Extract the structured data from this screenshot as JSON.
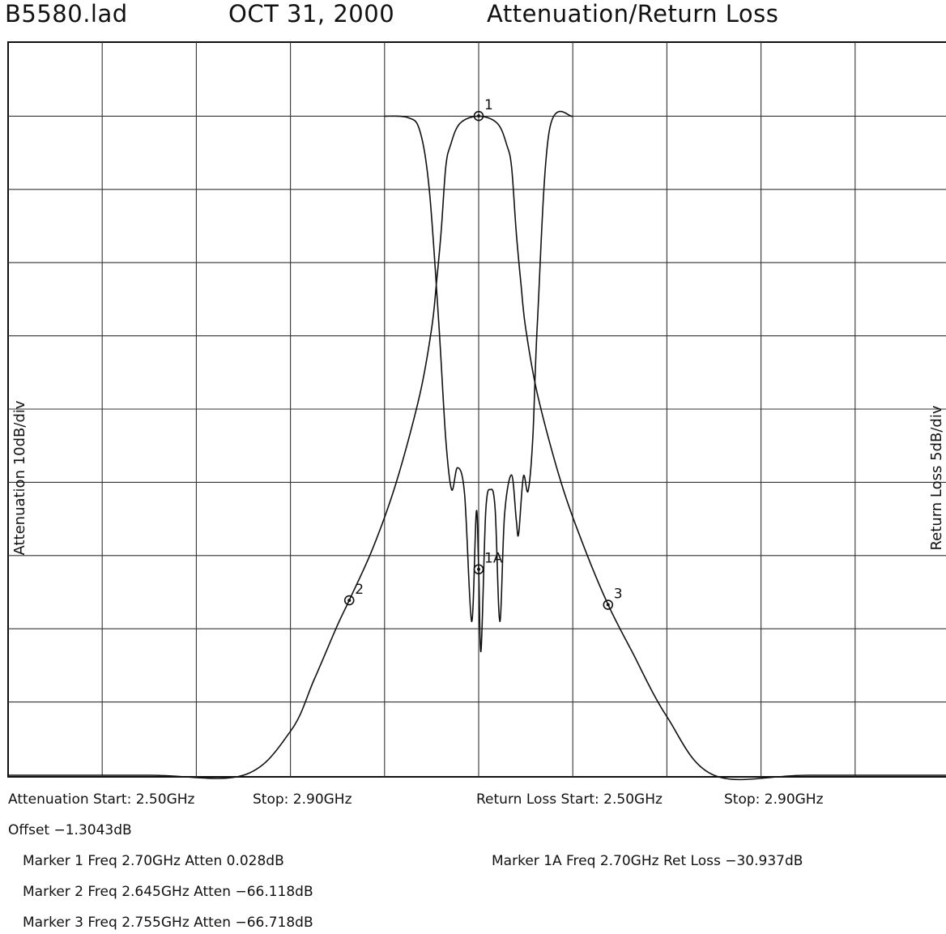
{
  "header": {
    "file": "B5580.lad",
    "date": "OCT 31, 2000",
    "title": "Attenuation/Return Loss"
  },
  "axes": {
    "left_label": "Attenuation 10dB/div",
    "right_label": "Return Loss 5dB/div"
  },
  "footer": {
    "atten_start": "Attenuation Start: 2.50GHz",
    "atten_stop": "Stop: 2.90GHz",
    "rl_start": "Return Loss Start: 2.50GHz",
    "rl_stop": "Stop: 2.90GHz",
    "offset": "Offset −1.3043dB",
    "marker1": "Marker 1 Freq 2.70GHz Atten 0.028dB",
    "marker1a": "Marker 1A Freq 2.70GHz Ret Loss −30.937dB",
    "marker2": "Marker 2 Freq 2.645GHz Atten −66.118dB",
    "marker3": "Marker 3 Freq 2.755GHz Atten −66.718dB"
  },
  "chart_data": {
    "type": "line",
    "x_range_ghz": [
      2.5,
      2.9
    ],
    "x_divisions": 10,
    "y_divisions": 10,
    "grid": true,
    "series": [
      {
        "name": "Attenuation",
        "unit": "dB",
        "scale_db_per_div": 10,
        "top_ref_db": 10,
        "x": [
          2.5,
          2.56,
          2.6,
          2.62,
          2.63,
          2.64,
          2.645,
          2.655,
          2.665,
          2.675,
          2.68,
          2.682,
          2.684,
          2.686,
          2.688,
          2.692,
          2.7,
          2.708,
          2.712,
          2.714,
          2.716,
          2.718,
          2.72,
          2.725,
          2.735,
          2.745,
          2.755,
          2.765,
          2.78,
          2.8,
          2.84,
          2.9
        ],
        "y": [
          -90,
          -90,
          -90,
          -84,
          -77,
          -69.5,
          -66.1,
          -59,
          -50,
          -38,
          -29,
          -23,
          -16,
          -7,
          -4,
          -1,
          0,
          -1,
          -4,
          -7,
          -16,
          -23,
          -29,
          -38,
          -50,
          -59,
          -66.7,
          -73,
          -82,
          -90,
          -90,
          -90
        ]
      },
      {
        "name": "Return Loss",
        "unit": "dB",
        "scale_db_per_div": 5,
        "top_ref_db": 5,
        "x": [
          2.66,
          2.67,
          2.675,
          2.679,
          2.683,
          2.686,
          2.6885,
          2.691,
          2.694,
          2.697,
          2.699,
          2.7,
          2.701,
          2.703,
          2.705,
          2.707,
          2.709,
          2.711,
          2.714,
          2.716,
          2.717,
          2.719,
          2.721,
          2.723,
          2.725,
          2.73,
          2.74
        ],
        "y": [
          0,
          -0.1,
          -1.0,
          -5,
          -14,
          -22,
          -25.5,
          -24,
          -25.8,
          -34.5,
          -27,
          -30.9,
          -36.5,
          -27,
          -25.5,
          -26.8,
          -34.5,
          -27.2,
          -24.5,
          -27.6,
          -28.5,
          -24.6,
          -25.6,
          -22,
          -14,
          -1.0,
          0
        ]
      }
    ],
    "markers": [
      {
        "label": "1",
        "series": "Attenuation",
        "x": 2.7,
        "y": 0.028
      },
      {
        "label": "1A",
        "series": "Return Loss",
        "x": 2.7,
        "y": -30.937
      },
      {
        "label": "2",
        "series": "Attenuation",
        "x": 2.645,
        "y": -66.118
      },
      {
        "label": "3",
        "series": "Attenuation",
        "x": 2.755,
        "y": -66.718
      }
    ]
  }
}
